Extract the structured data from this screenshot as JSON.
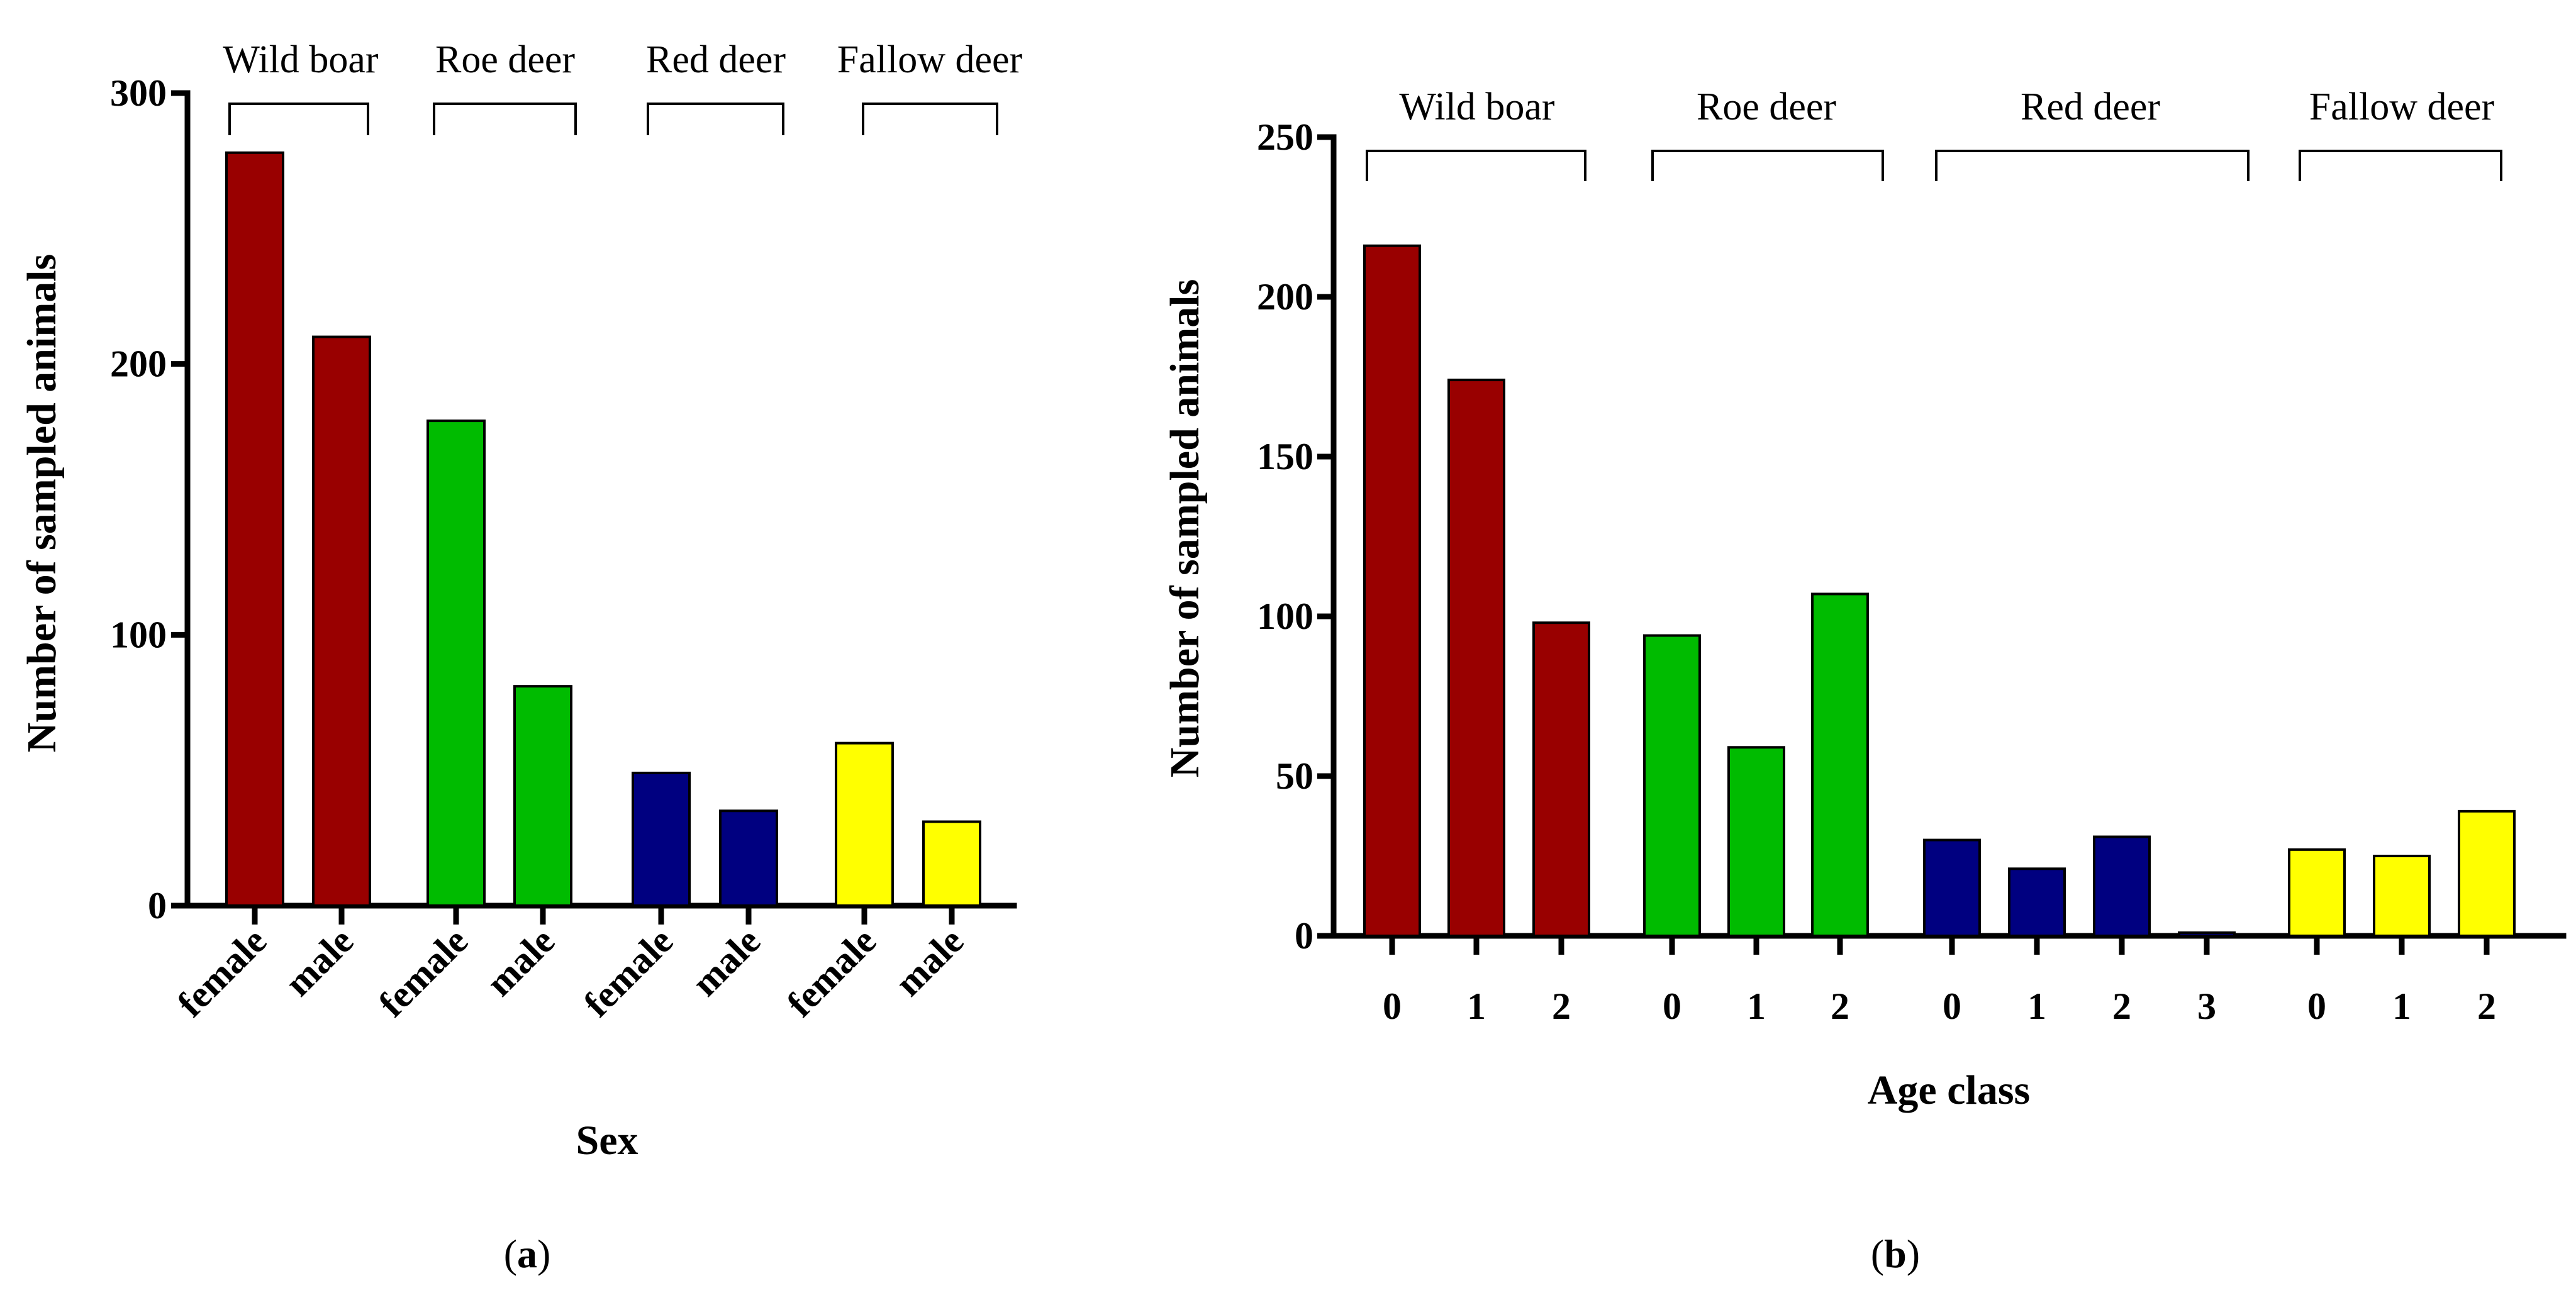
{
  "colors": {
    "wild_boar": "#990000",
    "roe_deer": "#00bb00",
    "red_deer": "#000080",
    "fallow_deer": "#ffff00"
  },
  "chart_data": [
    {
      "id": "a",
      "type": "bar",
      "panel_label": "a",
      "xlabel": "Sex",
      "ylabel": "Number of sampled animals",
      "ylim": [
        0,
        300
      ],
      "yticks": [
        0,
        100,
        200,
        300
      ],
      "groups": [
        {
          "name": "Wild boar",
          "color_key": "wild_boar",
          "categories": [
            "female",
            "male"
          ],
          "values": [
            278,
            210
          ]
        },
        {
          "name": "Roe deer",
          "color_key": "roe_deer",
          "categories": [
            "female",
            "male"
          ],
          "values": [
            179,
            81
          ]
        },
        {
          "name": "Red deer",
          "color_key": "red_deer",
          "categories": [
            "female",
            "male"
          ],
          "values": [
            49,
            35
          ]
        },
        {
          "name": "Fallow deer",
          "color_key": "fallow_deer",
          "categories": [
            "female",
            "male"
          ],
          "values": [
            60,
            31
          ]
        }
      ]
    },
    {
      "id": "b",
      "type": "bar",
      "panel_label": "b",
      "xlabel": "Age class",
      "ylabel": "Number of sampled animals",
      "ylim": [
        0,
        250
      ],
      "yticks": [
        0,
        50,
        100,
        150,
        200,
        250
      ],
      "groups": [
        {
          "name": "Wild boar",
          "color_key": "wild_boar",
          "categories": [
            "0",
            "1",
            "2"
          ],
          "values": [
            216,
            174,
            98
          ]
        },
        {
          "name": "Roe deer",
          "color_key": "roe_deer",
          "categories": [
            "0",
            "1",
            "2"
          ],
          "values": [
            94,
            59,
            107
          ]
        },
        {
          "name": "Red deer",
          "color_key": "red_deer",
          "categories": [
            "0",
            "1",
            "2",
            "3"
          ],
          "values": [
            30,
            21,
            31,
            1
          ]
        },
        {
          "name": "Fallow deer",
          "color_key": "fallow_deer",
          "categories": [
            "0",
            "1",
            "2"
          ],
          "values": [
            27,
            25,
            39
          ]
        }
      ]
    }
  ]
}
